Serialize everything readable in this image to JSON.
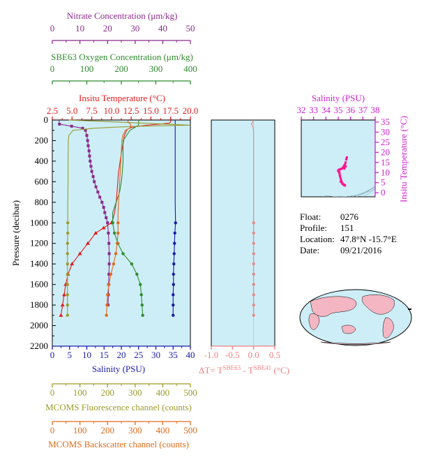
{
  "axes": {
    "nitrate": {
      "label": "Nitrate Concentration (μm/kg)",
      "ticks": [
        "0",
        "10",
        "20",
        "30",
        "40",
        "50"
      ],
      "range": [
        0,
        50
      ],
      "color": "#8b2a8b"
    },
    "oxygen": {
      "label": "SBE63 Oxygen Concentration (μm/kg)",
      "ticks": [
        "0",
        "100",
        "200",
        "300",
        "400"
      ],
      "range": [
        0,
        400
      ],
      "color": "#2e8b2e"
    },
    "temperature": {
      "label": "Insitu Temperature (°C)",
      "ticks": [
        "2.5",
        "5.0",
        "7.5",
        "10.0",
        "12.5",
        "15.0",
        "17.5",
        "20.0"
      ],
      "range": [
        2.5,
        20
      ],
      "color": "#e31a1c"
    },
    "pressure": {
      "label": "Pressure (decibar)",
      "ticks": [
        "0",
        "200",
        "400",
        "600",
        "800",
        "1000",
        "1200",
        "1400",
        "1600",
        "1800",
        "2000",
        "2200"
      ],
      "range": [
        0,
        2200
      ],
      "color": "#000000"
    },
    "salinity": {
      "label": "Salinity (PSU)",
      "ticks": [
        "0",
        "5",
        "10",
        "15",
        "20",
        "25",
        "30",
        "35",
        "40"
      ],
      "range": [
        0,
        40
      ],
      "color": "#1a1aa6"
    },
    "fluorescence": {
      "label": "MCOMS Fluorescence channel (counts)",
      "ticks": [
        "0",
        "100",
        "200",
        "300",
        "400",
        "500"
      ],
      "range": [
        0,
        500
      ],
      "color": "#9a9a2a"
    },
    "backscatter": {
      "label": "MCOMS Backscatter channel (counts)",
      "ticks": [
        "0",
        "100",
        "200",
        "300",
        "400",
        "500"
      ],
      "range": [
        0,
        500
      ],
      "color": "#e06a1a"
    },
    "deltaT": {
      "label_prefix": "ΔT= T",
      "sup1": "SBE63",
      "mid": " - T",
      "sup2": "SBE41",
      "suffix": " (°C)",
      "ticks": [
        "-1.0",
        "-0.5",
        "0.0",
        "0.5"
      ],
      "range": [
        -1,
        0.5
      ],
      "color": "#f08080"
    },
    "ts_salinity": {
      "label": "Salinity (PSU)",
      "ticks": [
        "32",
        "33",
        "34",
        "35",
        "36",
        "37",
        "38"
      ],
      "range": [
        32,
        38
      ],
      "color": "#cc22cc"
    },
    "ts_temperature": {
      "label": "Insitu Temperature (°C)",
      "ticks": [
        "0",
        "5",
        "10",
        "15",
        "20",
        "25",
        "30",
        "35"
      ],
      "range": [
        -2,
        36
      ],
      "color": "#cc22cc"
    }
  },
  "info": {
    "float_label": "Float:",
    "float_value": "0276",
    "profile_label": "Profile:",
    "profile_value": "151",
    "location_label": "Location:",
    "location_value": "47.8°N  -15.7°E",
    "date_label": "Date:",
    "date_value": "09/21/2016"
  },
  "chart_data": [
    {
      "type": "line",
      "panel": "main-profiles",
      "y_axis": "Pressure (decibar)",
      "ylim": [
        0,
        2200
      ],
      "series": [
        {
          "name": "Insitu Temperature (°C)",
          "color": "#e31a1c",
          "pressure": [
            0,
            10,
            20,
            30,
            40,
            50,
            60,
            70,
            90,
            120,
            160,
            220,
            300,
            400,
            500,
            600,
            700,
            800,
            900,
            960,
            1000,
            1050,
            1100,
            1200,
            1300,
            1400,
            1500,
            1600,
            1700,
            1800,
            1900
          ],
          "values": [
            17.5,
            17.5,
            17.5,
            17.3,
            16.0,
            14.5,
            13.5,
            12.6,
            12.0,
            11.8,
            11.6,
            11.5,
            11.3,
            11.1,
            10.9,
            10.8,
            10.7,
            10.6,
            10.4,
            10.2,
            10.0,
            9.0,
            8.0,
            7.0,
            6.0,
            5.0,
            4.5,
            4.2,
            4.0,
            3.8,
            3.6
          ],
          "markers_from": 1000
        },
        {
          "name": "Salinity (PSU)",
          "color": "#1a1aa6",
          "pressure": [
            0,
            50,
            100,
            200,
            400,
            600,
            800,
            1000,
            1100,
            1200,
            1300,
            1400,
            1500,
            1600,
            1700,
            1800,
            1900
          ],
          "values": [
            35.6,
            35.6,
            35.6,
            35.6,
            35.6,
            35.6,
            35.6,
            35.7,
            35.5,
            35.4,
            35.3,
            35.2,
            35.1,
            35.1,
            35.0,
            35.0,
            35.0
          ],
          "markers_from": 1000
        },
        {
          "name": "Nitrate Concentration (μm/kg)",
          "color": "#8b2a8b",
          "pressure": [
            0,
            20,
            40,
            60,
            80,
            100,
            150,
            200,
            250,
            300,
            350,
            400,
            450,
            500,
            550,
            600,
            650,
            700,
            750,
            800,
            850,
            900,
            950,
            1000,
            1100,
            1200,
            1300,
            1400,
            1500,
            1600,
            1700,
            1800
          ],
          "values": [
            2.5,
            2.5,
            2.6,
            7.0,
            11.0,
            12.0,
            12.5,
            12.8,
            13.0,
            13.3,
            13.5,
            13.7,
            14.0,
            14.3,
            14.8,
            15.2,
            15.8,
            16.5,
            17.2,
            18.0,
            18.6,
            19.0,
            19.5,
            20.0,
            20.3,
            20.5,
            20.6,
            20.6,
            20.5,
            20.4,
            20.3,
            20.2
          ]
        },
        {
          "name": "SBE63 Oxygen Concentration (μm/kg)",
          "color": "#2e8b2e",
          "pressure": [
            0,
            50,
            100,
            200,
            300,
            400,
            500,
            600,
            700,
            800,
            900,
            1000,
            1100,
            1200,
            1300,
            1400,
            1500,
            1600,
            1700,
            1800,
            1900
          ],
          "values": [
            250,
            250,
            225,
            205,
            205,
            205,
            203,
            200,
            195,
            185,
            175,
            175,
            180,
            190,
            205,
            230,
            245,
            255,
            258,
            260,
            262
          ],
          "markers_from": 1000
        },
        {
          "name": "MCOMS Fluorescence channel (counts)",
          "color": "#9a9a2a",
          "pressure": [
            0,
            50,
            60,
            70,
            80,
            100,
            150,
            200,
            400,
            600,
            800,
            1000,
            1100,
            1200,
            1300,
            1400,
            1500,
            1600,
            1700,
            1800,
            1900
          ],
          "values": [
            60,
            500,
            320,
            220,
            150,
            75,
            60,
            58,
            57,
            57,
            56,
            56,
            56,
            55,
            55,
            55,
            55,
            55,
            55,
            55,
            55
          ],
          "markers_from": 1000
        },
        {
          "name": "MCOMS Backscatter channel (counts)",
          "color": "#e06a1a",
          "pressure": [
            0,
            50,
            80,
            100,
            150,
            200,
            300,
            400,
            500,
            600,
            700,
            800,
            900,
            1000,
            1100,
            1200,
            1300,
            1400,
            1500,
            1600,
            1700,
            1800,
            1900
          ],
          "values": [
            270,
            285,
            280,
            265,
            255,
            252,
            250,
            248,
            246,
            244,
            242,
            240,
            238,
            238,
            238,
            235,
            230,
            222,
            212,
            205,
            200,
            198,
            196
          ],
          "markers_from": 1000
        }
      ]
    },
    {
      "type": "line",
      "panel": "delta-T",
      "y_axis": "Pressure (decibar)",
      "ylim": [
        0,
        2200
      ],
      "xlim": [
        -1.0,
        0.5
      ],
      "series": [
        {
          "name": "ΔT",
          "color": "#f08080",
          "pressure": [
            0,
            20,
            40,
            60,
            80,
            100,
            200,
            400,
            600,
            800,
            1000,
            1100,
            1200,
            1300,
            1400,
            1500,
            1600,
            1700,
            1800,
            1900
          ],
          "values": [
            0.0,
            -0.02,
            -0.05,
            -0.02,
            -0.01,
            0.0,
            0.0,
            0.0,
            0.0,
            0.0,
            0.0,
            0.0,
            0.0,
            0.0,
            0.0,
            0.0,
            0.0,
            0.0,
            0.0,
            0.0
          ]
        }
      ]
    },
    {
      "type": "scatter",
      "panel": "T-S diagram",
      "xlabel": "Salinity (PSU)",
      "ylabel": "Insitu Temperature (°C)",
      "xlim": [
        32,
        38
      ],
      "ylim": [
        -2,
        36
      ],
      "series": [
        {
          "name": "T-S",
          "color": "#ff1493",
          "x": [
            35.7,
            35.65,
            35.6,
            35.55,
            35.5,
            35.45,
            35.4,
            35.3,
            35.2,
            35.1,
            35.05,
            35.0,
            35.0,
            35.05,
            35.1,
            35.12,
            35.15,
            35.2,
            35.25,
            35.2,
            35.3,
            35.35,
            35.4,
            35.45,
            35.5,
            35.55,
            35.5,
            35.6
          ],
          "y": [
            17.5,
            16.5,
            15,
            14,
            13.5,
            13,
            12.5,
            12,
            11.7,
            11.5,
            11.3,
            11,
            10.8,
            10.5,
            10,
            9,
            8,
            7,
            6,
            5.5,
            5,
            4.5,
            4.2,
            4,
            3.8,
            3.6,
            12,
            13
          ]
        }
      ]
    }
  ],
  "map": {
    "label": "world-map"
  }
}
